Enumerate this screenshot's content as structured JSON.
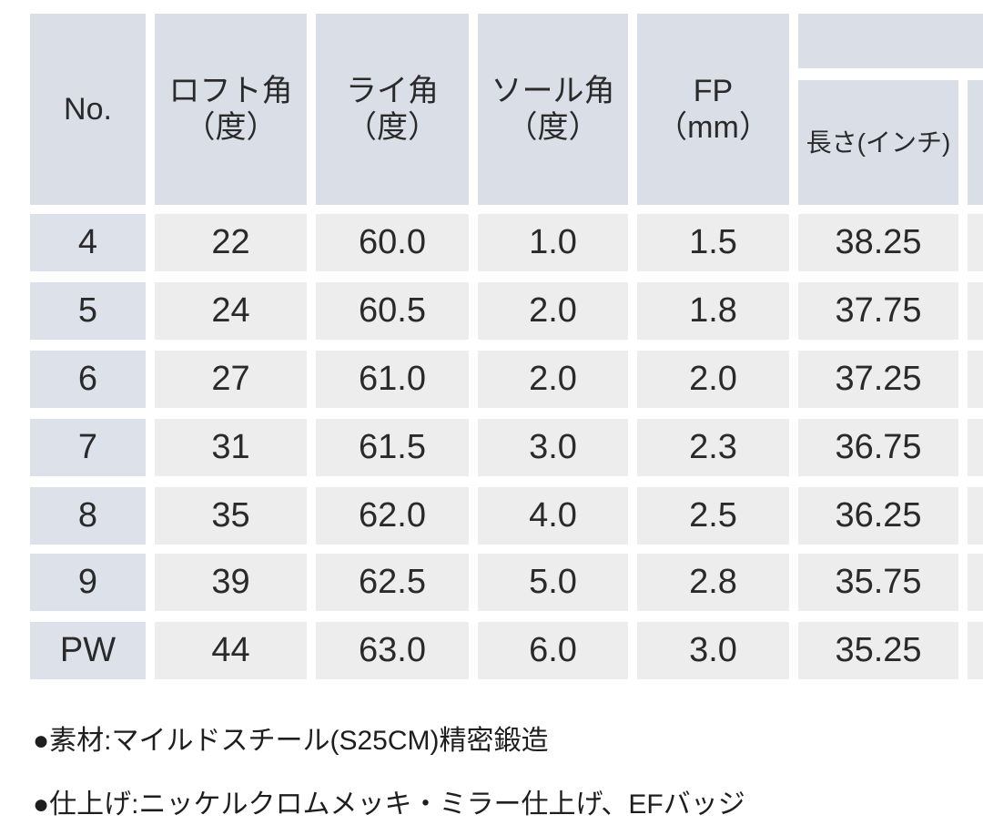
{
  "table": {
    "columns": [
      {
        "lines": [
          "No."
        ]
      },
      {
        "lines": [
          "ロフト角",
          "（度）"
        ]
      },
      {
        "lines": [
          "ライ角",
          "（度）"
        ]
      },
      {
        "lines": [
          "ソール角",
          "（度）"
        ]
      },
      {
        "lines": [
          "FP",
          "（mm）"
        ]
      },
      {
        "lines": [
          "長さ(インチ)"
        ]
      }
    ],
    "rows": [
      [
        "4",
        "22",
        "60.0",
        "1.0",
        "1.5",
        "38.25"
      ],
      [
        "5",
        "24",
        "60.5",
        "2.0",
        "1.8",
        "37.75"
      ],
      [
        "6",
        "27",
        "61.0",
        "2.0",
        "2.0",
        "37.25"
      ],
      [
        "7",
        "31",
        "61.5",
        "3.0",
        "2.3",
        "36.75"
      ],
      [
        "8",
        "35",
        "62.0",
        "4.0",
        "2.5",
        "36.25"
      ],
      [
        "9",
        "39",
        "62.5",
        "5.0",
        "2.8",
        "35.75"
      ],
      [
        "PW",
        "44",
        "63.0",
        "6.0",
        "3.0",
        "35.25"
      ]
    ]
  },
  "notes": [
    "●素材:マイルドスチール(S25CM)精密鍛造",
    "●仕上げ:ニッケルクロムメッキ・ミラー仕上げ、EFバッジ"
  ]
}
